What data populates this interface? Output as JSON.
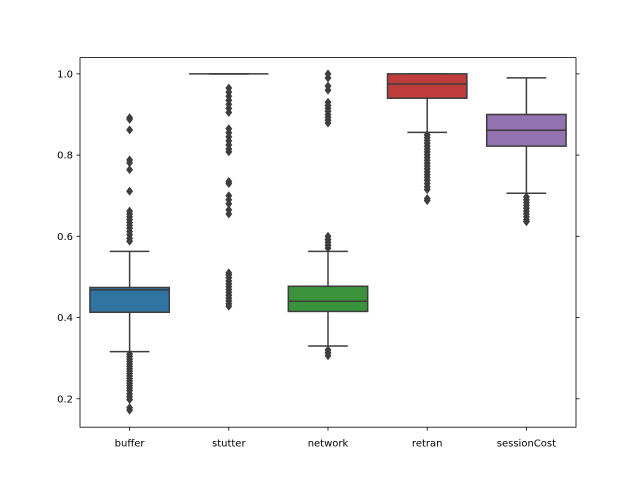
{
  "chart_data": {
    "type": "box",
    "title": "",
    "xlabel": "",
    "ylabel": "",
    "ylim": [
      0.13,
      1.04
    ],
    "yticks": [
      0.2,
      0.4,
      0.6,
      0.8,
      1.0
    ],
    "ytick_labels": [
      "0.2",
      "0.4",
      "0.6",
      "0.8",
      "1.0"
    ],
    "grid": false,
    "categories": [
      "buffer",
      "stutter",
      "network",
      "retran",
      "sessionCost"
    ],
    "colors": [
      "#3274a1",
      "#e1812c",
      "#3a923a",
      "#c03d3e",
      "#9372b2"
    ],
    "line_color": "#3d3d3d",
    "series": [
      {
        "category": "buffer",
        "q1": 0.413,
        "median": 0.468,
        "q3": 0.474,
        "whisker_low": 0.316,
        "whisker_high": 0.563,
        "outliers": [
          0.888,
          0.892,
          0.862,
          0.788,
          0.781,
          0.764,
          0.711,
          0.662,
          0.655,
          0.648,
          0.641,
          0.634,
          0.627,
          0.62,
          0.612,
          0.604,
          0.595,
          0.588,
          0.31,
          0.304,
          0.298,
          0.292,
          0.286,
          0.28,
          0.274,
          0.268,
          0.262,
          0.256,
          0.25,
          0.244,
          0.238,
          0.232,
          0.226,
          0.22,
          0.212,
          0.205,
          0.198,
          0.178,
          0.172
        ]
      },
      {
        "category": "stutter",
        "q1": 1.0,
        "median": 1.0,
        "q3": 1.0,
        "whisker_low": 1.0,
        "whisker_high": 1.0,
        "outliers": [
          0.965,
          0.955,
          0.945,
          0.935,
          0.925,
          0.915,
          0.905,
          0.865,
          0.855,
          0.845,
          0.835,
          0.825,
          0.815,
          0.808,
          0.735,
          0.73,
          0.7,
          0.69,
          0.68,
          0.665,
          0.655,
          0.51,
          0.505,
          0.498,
          0.49,
          0.483,
          0.476,
          0.469,
          0.462,
          0.455,
          0.448,
          0.441,
          0.434,
          0.428
        ]
      },
      {
        "category": "network",
        "q1": 0.415,
        "median": 0.44,
        "q3": 0.477,
        "whisker_low": 0.33,
        "whisker_high": 0.563,
        "outliers": [
          1.0,
          0.99,
          0.97,
          0.96,
          0.93,
          0.922,
          0.915,
          0.908,
          0.9,
          0.893,
          0.886,
          0.879,
          0.6,
          0.592,
          0.585,
          0.578,
          0.571,
          0.32,
          0.313,
          0.306
        ]
      },
      {
        "category": "retran",
        "q1": 0.94,
        "median": 0.975,
        "q3": 1.0,
        "whisker_low": 0.856,
        "whisker_high": 1.0,
        "outliers": [
          0.85,
          0.843,
          0.836,
          0.829,
          0.822,
          0.815,
          0.808,
          0.801,
          0.794,
          0.787,
          0.78,
          0.773,
          0.766,
          0.759,
          0.752,
          0.745,
          0.738,
          0.73,
          0.722,
          0.715,
          0.693,
          0.688
        ]
      },
      {
        "category": "sessionCost",
        "q1": 0.822,
        "median": 0.861,
        "q3": 0.9,
        "whisker_low": 0.706,
        "whisker_high": 0.99,
        "outliers": [
          0.697,
          0.69,
          0.683,
          0.676,
          0.669,
          0.662,
          0.655,
          0.648,
          0.641,
          0.636
        ]
      }
    ]
  }
}
